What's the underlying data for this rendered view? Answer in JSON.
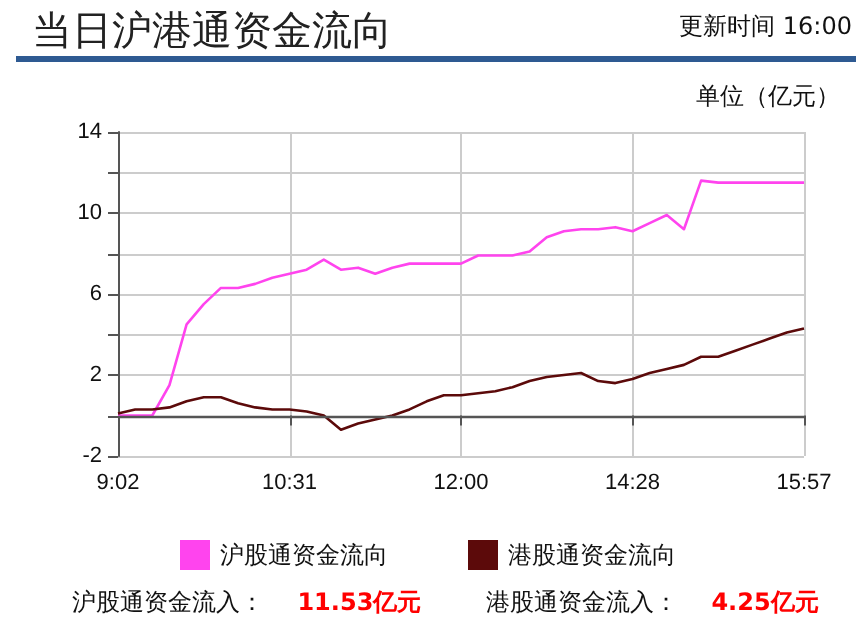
{
  "chart_data": {
    "type": "line",
    "title": "当日沪港通资金流向",
    "ylabel": "单位（亿元）",
    "annotations": [
      "更新时间 16:00",
      "沪股通资金流入：    11.53亿元",
      "港股通资金流入：    4.25亿元"
    ],
    "categories": [
      "9:02",
      null,
      null,
      null,
      null,
      null,
      null,
      null,
      null,
      null,
      "10:31",
      null,
      null,
      null,
      null,
      null,
      null,
      null,
      null,
      null,
      "12:00",
      null,
      null,
      null,
      null,
      null,
      null,
      null,
      null,
      null,
      "14:28",
      null,
      null,
      null,
      null,
      null,
      null,
      null,
      null,
      null,
      "15:57"
    ],
    "ylim": [
      -2,
      14
    ],
    "yticks": [
      -2,
      {
        "value": 0,
        "label": null
      },
      2,
      {
        "value": 4,
        "label": null
      },
      6,
      {
        "value": 8,
        "label": null
      },
      10,
      {
        "value": 12,
        "label": null
      },
      14
    ],
    "grid": true,
    "legend": "bottom",
    "marker": "none",
    "line_style": "solid",
    "ref_lines": [
      {
        "axis": "y",
        "value": 0,
        "color": "#555555"
      }
    ],
    "series": [
      {
        "name": "沪股通资金流向",
        "color": "#ff44ee",
        "values": [
          0,
          0,
          0,
          1.5,
          4.5,
          5.5,
          6.3,
          6.3,
          6.5,
          6.8,
          7.0,
          7.2,
          7.7,
          7.2,
          7.3,
          7.0,
          7.3,
          7.5,
          7.5,
          7.5,
          7.5,
          7.9,
          7.9,
          7.9,
          8.1,
          8.8,
          9.1,
          9.2,
          9.2,
          9.3,
          9.1,
          9.5,
          9.9,
          9.2,
          11.6,
          11.5,
          11.5,
          11.5,
          11.5,
          11.5,
          11.5
        ]
      },
      {
        "name": "港股通资金流向",
        "color": "#5c0a0a",
        "values": [
          0.1,
          0.3,
          0.3,
          0.4,
          0.7,
          0.9,
          0.9,
          0.6,
          0.4,
          0.3,
          0.3,
          0.2,
          0,
          -0.7,
          -0.4,
          -0.2,
          0,
          0.3,
          0.7,
          1.0,
          1.0,
          1.1,
          1.2,
          1.4,
          1.7,
          1.9,
          2.0,
          2.1,
          1.7,
          1.6,
          1.8,
          2.1,
          2.3,
          2.5,
          2.9,
          2.9,
          3.2,
          3.5,
          3.8,
          4.1,
          4.3
        ]
      }
    ]
  }
}
